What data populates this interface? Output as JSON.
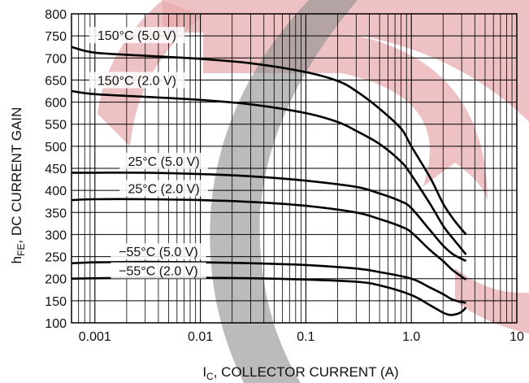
{
  "chart_data": {
    "type": "line",
    "x_scale": "log",
    "xlim": [
      0.0006,
      10
    ],
    "ylim": [
      100,
      800
    ],
    "grid": true,
    "xlabel": {
      "main": "I",
      "sub": "C",
      "rest": ", COLLECTOR CURRENT (A)"
    },
    "ylabel": {
      "main": "h",
      "sub": "FE",
      "rest": ", DC CURRENT GAIN"
    },
    "x_ticks": [
      0.001,
      0.01,
      0.1,
      1,
      10
    ],
    "x_tick_labels": [
      "0.001",
      "0.01",
      "0.1",
      "1.0",
      "10"
    ],
    "y_ticks": [
      100,
      150,
      200,
      250,
      300,
      350,
      400,
      450,
      500,
      550,
      600,
      650,
      700,
      750,
      800
    ],
    "y_tick_labels": [
      "100",
      "150",
      "200",
      "250",
      "300",
      "350",
      "400",
      "450",
      "500",
      "550",
      "600",
      "650",
      "700",
      "750",
      "800"
    ],
    "series": [
      {
        "name": "150°C (5.0 V)",
        "x": [
          0.0006,
          0.001,
          0.003,
          0.01,
          0.03,
          0.1,
          0.2,
          0.3,
          0.5,
          0.8,
          1.0,
          1.5,
          2.0,
          2.5,
          3.3
        ],
        "y": [
          725,
          712,
          705,
          698,
          688,
          668,
          648,
          625,
          585,
          540,
          500,
          430,
          370,
          335,
          300
        ],
        "label_at": [
          0.0025,
          750
        ]
      },
      {
        "name": "150°C (2.0 V)",
        "x": [
          0.0006,
          0.001,
          0.003,
          0.01,
          0.03,
          0.1,
          0.2,
          0.3,
          0.5,
          0.8,
          1.0,
          1.5,
          2.0,
          2.5,
          3.3
        ],
        "y": [
          625,
          618,
          612,
          605,
          595,
          575,
          555,
          535,
          505,
          465,
          435,
          370,
          320,
          290,
          255
        ],
        "label_at": [
          0.0025,
          648
        ]
      },
      {
        "name": "25°C (5.0 V)",
        "x": [
          0.0006,
          0.001,
          0.003,
          0.01,
          0.03,
          0.1,
          0.3,
          0.5,
          0.8,
          1.0,
          1.5,
          2.0,
          2.5,
          3.3
        ],
        "y": [
          440,
          440,
          440,
          437,
          432,
          422,
          408,
          393,
          375,
          360,
          310,
          275,
          255,
          240
        ],
        "label_at": [
          0.0045,
          465
        ]
      },
      {
        "name": "25°C (2.0 V)",
        "x": [
          0.0006,
          0.001,
          0.003,
          0.01,
          0.03,
          0.1,
          0.3,
          0.5,
          0.8,
          1.0,
          1.5,
          2.0,
          2.5,
          3.3
        ],
        "y": [
          378,
          380,
          380,
          378,
          374,
          365,
          350,
          335,
          318,
          305,
          265,
          240,
          218,
          198
        ],
        "label_at": [
          0.0045,
          403
        ]
      },
      {
        "name": "−55°C (5.0 V)",
        "x": [
          0.0006,
          0.001,
          0.003,
          0.01,
          0.03,
          0.1,
          0.3,
          0.5,
          1.0,
          1.5,
          2.0,
          2.5,
          3.3
        ],
        "y": [
          235,
          237,
          238,
          237,
          235,
          231,
          223,
          215,
          200,
          180,
          165,
          152,
          145
        ],
        "label_at": [
          0.004,
          260
        ]
      },
      {
        "name": "−55°C (2.0 V)",
        "x": [
          0.0006,
          0.001,
          0.003,
          0.01,
          0.03,
          0.1,
          0.3,
          0.5,
          1.0,
          1.5,
          2.0,
          2.3,
          2.6,
          3.0,
          3.3
        ],
        "y": [
          200,
          201,
          202,
          202,
          201,
          198,
          193,
          185,
          163,
          140,
          123,
          118,
          119,
          125,
          135
        ],
        "label_at": [
          0.004,
          217
        ]
      }
    ]
  }
}
